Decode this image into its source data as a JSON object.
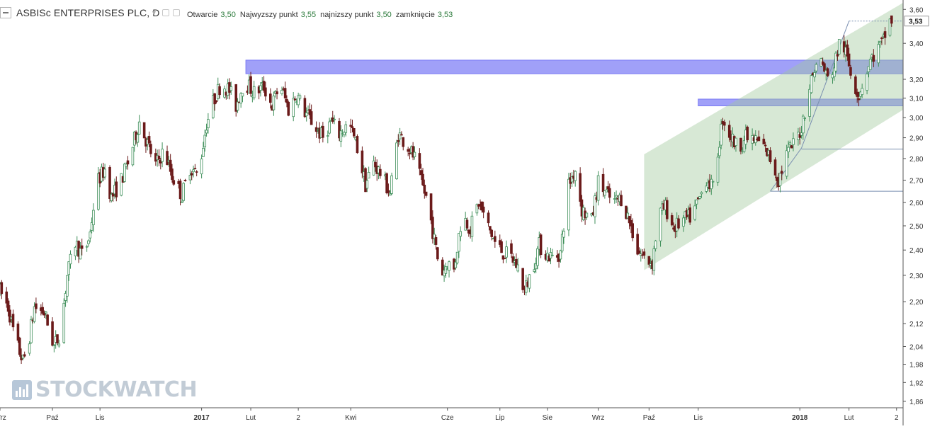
{
  "header": {
    "title": "ASBISc ENTERPRISES PLC, D",
    "ohlc": [
      {
        "label": "Otwarcie",
        "value": "3,50"
      },
      {
        "label": "Najwyzszy punkt",
        "value": "3,55"
      },
      {
        "label": "najnizszy punkt",
        "value": "3,50"
      },
      {
        "label": "zamknięcie",
        "value": "3,53"
      }
    ]
  },
  "watermark": {
    "text": "STOCKWATCH"
  },
  "colors": {
    "up": "#3f8f5a",
    "down": "#6b1a1a",
    "channel": "#9fc79a",
    "zone": "#7b7bf5",
    "last_price_badge": "#ffffff",
    "line": "#7a8fb0"
  },
  "chart_data": {
    "type": "candlestick",
    "title": "ASBISc ENTERPRISES PLC, D",
    "y_axis": {
      "scale": "log",
      "ticks": [
        "3,60",
        "3,40",
        "3,20",
        "3,10",
        "3,00",
        "2,90",
        "2,80",
        "2,70",
        "2,60",
        "2,50",
        "2,40",
        "2,30",
        "2,20",
        "2,12",
        "2,04",
        "1,98",
        "1,92",
        "1,86"
      ],
      "tick_values": [
        3.6,
        3.4,
        3.2,
        3.1,
        3.0,
        2.9,
        2.8,
        2.7,
        2.6,
        2.5,
        2.4,
        2.3,
        2.2,
        2.12,
        2.04,
        1.98,
        1.92,
        1.86
      ],
      "range": [
        1.84,
        3.64
      ],
      "last_price": "3,53"
    },
    "x_axis": {
      "ticks": [
        {
          "label": "Wrz",
          "date": "2016-09-01"
        },
        {
          "label": "Paź",
          "date": "2016-10-03"
        },
        {
          "label": "Lis",
          "date": "2016-11-01"
        },
        {
          "label": "2017",
          "date": "2017-01-02"
        },
        {
          "label": "Lut",
          "date": "2017-02-01"
        },
        {
          "label": "2",
          "date": "2017-03-02"
        },
        {
          "label": "Kwi",
          "date": "2017-04-03"
        },
        {
          "label": "Cze",
          "date": "2017-06-01"
        },
        {
          "label": "Lip",
          "date": "2017-07-03"
        },
        {
          "label": "Sie",
          "date": "2017-08-01"
        },
        {
          "label": "Wrz",
          "date": "2017-09-01"
        },
        {
          "label": "Paź",
          "date": "2017-10-02"
        },
        {
          "label": "Lis",
          "date": "2017-11-01"
        },
        {
          "label": "2018",
          "date": "2018-01-02"
        },
        {
          "label": "Lut",
          "date": "2018-02-01"
        },
        {
          "label": "2",
          "date": "2018-03-02"
        }
      ],
      "range": [
        "2016-09-01",
        "2018-03-06"
      ]
    },
    "price_path": [
      [
        "2016-09-01",
        2.24
      ],
      [
        "2016-09-06",
        2.18
      ],
      [
        "2016-09-10",
        2.07
      ],
      [
        "2016-09-15",
        1.99
      ],
      [
        "2016-09-18",
        2.04
      ],
      [
        "2016-09-22",
        2.18
      ],
      [
        "2016-09-28",
        2.16
      ],
      [
        "2016-10-01",
        2.1
      ],
      [
        "2016-10-04",
        2.04
      ],
      [
        "2016-10-08",
        2.09
      ],
      [
        "2016-10-12",
        2.3
      ],
      [
        "2016-10-17",
        2.43
      ],
      [
        "2016-10-22",
        2.37
      ],
      [
        "2016-10-26",
        2.47
      ],
      [
        "2016-10-30",
        2.69
      ],
      [
        "2016-11-04",
        2.75
      ],
      [
        "2016-11-08",
        2.62
      ],
      [
        "2016-11-14",
        2.7
      ],
      [
        "2016-11-19",
        2.8
      ],
      [
        "2016-11-25",
        2.98
      ],
      [
        "2016-11-30",
        2.87
      ],
      [
        "2016-12-05",
        2.77
      ],
      [
        "2016-12-10",
        2.84
      ],
      [
        "2016-12-15",
        2.72
      ],
      [
        "2016-12-21",
        2.63
      ],
      [
        "2016-12-26",
        2.76
      ],
      [
        "2016-12-31",
        2.72
      ],
      [
        "2017-01-05",
        2.97
      ],
      [
        "2017-01-09",
        3.08
      ],
      [
        "2017-01-14",
        3.18
      ],
      [
        "2017-01-19",
        3.14
      ],
      [
        "2017-01-23",
        3.06
      ],
      [
        "2017-01-28",
        3.19
      ],
      [
        "2017-02-03",
        3.13
      ],
      [
        "2017-02-09",
        3.16
      ],
      [
        "2017-02-14",
        3.06
      ],
      [
        "2017-02-19",
        3.18
      ],
      [
        "2017-02-24",
        3.04
      ],
      [
        "2017-03-01",
        3.12
      ],
      [
        "2017-03-06",
        3.03
      ],
      [
        "2017-03-11",
        2.97
      ],
      [
        "2017-03-17",
        2.9
      ],
      [
        "2017-03-22",
        2.98
      ],
      [
        "2017-03-27",
        2.92
      ],
      [
        "2017-04-02",
        2.97
      ],
      [
        "2017-04-07",
        2.85
      ],
      [
        "2017-04-12",
        2.68
      ],
      [
        "2017-04-17",
        2.78
      ],
      [
        "2017-04-22",
        2.72
      ],
      [
        "2017-04-27",
        2.64
      ],
      [
        "2017-05-02",
        2.92
      ],
      [
        "2017-05-07",
        2.87
      ],
      [
        "2017-05-12",
        2.8
      ],
      [
        "2017-05-16",
        2.69
      ],
      [
        "2017-05-20",
        2.6
      ],
      [
        "2017-05-24",
        2.44
      ],
      [
        "2017-05-28",
        2.3
      ],
      [
        "2017-06-01",
        2.35
      ],
      [
        "2017-06-05",
        2.32
      ],
      [
        "2017-06-10",
        2.55
      ],
      [
        "2017-06-15",
        2.49
      ],
      [
        "2017-06-20",
        2.6
      ],
      [
        "2017-06-25",
        2.51
      ],
      [
        "2017-06-30",
        2.43
      ],
      [
        "2017-07-05",
        2.39
      ],
      [
        "2017-07-10",
        2.37
      ],
      [
        "2017-07-14",
        2.33
      ],
      [
        "2017-07-18",
        2.24
      ],
      [
        "2017-07-22",
        2.31
      ],
      [
        "2017-07-27",
        2.42
      ],
      [
        "2017-08-01",
        2.38
      ],
      [
        "2017-08-05",
        2.37
      ],
      [
        "2017-08-09",
        2.39
      ],
      [
        "2017-08-14",
        2.68
      ],
      [
        "2017-08-18",
        2.75
      ],
      [
        "2017-08-22",
        2.57
      ],
      [
        "2017-08-28",
        2.52
      ],
      [
        "2017-09-01",
        2.69
      ],
      [
        "2017-09-05",
        2.65
      ],
      [
        "2017-09-10",
        2.6
      ],
      [
        "2017-09-15",
        2.62
      ],
      [
        "2017-09-20",
        2.52
      ],
      [
        "2017-09-25",
        2.4
      ],
      [
        "2017-09-30",
        2.36
      ],
      [
        "2017-10-04",
        2.35
      ],
      [
        "2017-10-08",
        2.55
      ],
      [
        "2017-10-12",
        2.58
      ],
      [
        "2017-10-17",
        2.49
      ],
      [
        "2017-10-22",
        2.52
      ],
      [
        "2017-10-28",
        2.54
      ],
      [
        "2017-11-02",
        2.62
      ],
      [
        "2017-11-06",
        2.71
      ],
      [
        "2017-11-10",
        2.66
      ],
      [
        "2017-11-16",
        3.0
      ],
      [
        "2017-11-20",
        2.92
      ],
      [
        "2017-11-25",
        2.85
      ],
      [
        "2017-11-30",
        2.9
      ],
      [
        "2017-12-05",
        2.89
      ],
      [
        "2017-12-10",
        2.87
      ],
      [
        "2017-12-15",
        2.8
      ],
      [
        "2017-12-20",
        2.7
      ],
      [
        "2017-12-25",
        2.82
      ],
      [
        "2017-12-30",
        2.88
      ],
      [
        "2018-01-03",
        2.95
      ],
      [
        "2018-01-07",
        3.13
      ],
      [
        "2018-01-11",
        3.26
      ],
      [
        "2018-01-15",
        3.3
      ],
      [
        "2018-01-19",
        3.2
      ],
      [
        "2018-01-23",
        3.27
      ],
      [
        "2018-01-27",
        3.44
      ],
      [
        "2018-01-31",
        3.31
      ],
      [
        "2018-02-02",
        3.24
      ],
      [
        "2018-02-04",
        3.18
      ],
      [
        "2018-02-07",
        3.12
      ],
      [
        "2018-02-10",
        3.2
      ],
      [
        "2018-02-14",
        3.3
      ],
      [
        "2018-02-18",
        3.36
      ],
      [
        "2018-02-22",
        3.41
      ],
      [
        "2018-02-25",
        3.53
      ],
      [
        "2018-02-27",
        3.53
      ]
    ],
    "annotations": {
      "resistance_zones": [
        {
          "from": 3.23,
          "to": 3.305,
          "x_start": "2017-01-29"
        },
        {
          "from": 3.06,
          "to": 3.095,
          "x_start": "2017-11-01"
        }
      ],
      "channel": {
        "lower": [
          [
            "2017-09-29",
            2.32
          ],
          [
            "2018-03-06",
            3.04
          ]
        ],
        "upper": [
          [
            "2017-09-29",
            2.82
          ],
          [
            "2018-03-06",
            3.64
          ]
        ]
      },
      "horizontal_lines": [
        {
          "value": 2.65,
          "x_start": "2017-12-15",
          "x_end": "2018-03-06"
        },
        {
          "value": 2.845,
          "x_start": "2018-01-03",
          "x_end": "2018-03-06"
        },
        {
          "value": 3.53,
          "x_start": "2018-02-01",
          "x_end": "2018-03-06"
        }
      ],
      "trend_lines": [
        [
          [
            "2017-12-15",
            2.65
          ],
          [
            "2018-01-03",
            2.85
          ],
          [
            "2018-02-01",
            3.53
          ]
        ]
      ]
    }
  }
}
